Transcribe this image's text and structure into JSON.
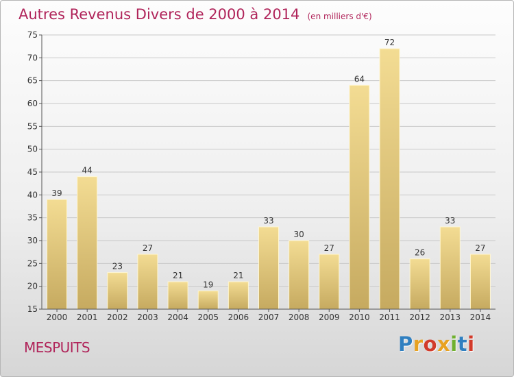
{
  "header": {
    "title": "Autres Revenus Divers de 2000 à 2014",
    "unit": "(en milliers d'€)"
  },
  "footer": {
    "place": "MESPUITS",
    "logo": "Proxiti",
    "logo_colors": [
      "#2f7fc0",
      "#e8a222",
      "#d23a2a",
      "#e8a222",
      "#6fb02f",
      "#2f7fc0",
      "#d23a2a"
    ]
  },
  "colors": {
    "title": "#b0245a",
    "bar_light": "#f3dc93",
    "bar_dark": "#c6aa60",
    "grid": "#c8c8c8",
    "axis": "#555555"
  },
  "chart_data": {
    "type": "bar",
    "categories": [
      "2000",
      "2001",
      "2002",
      "2003",
      "2004",
      "2005",
      "2006",
      "2007",
      "2008",
      "2009",
      "2010",
      "2011",
      "2012",
      "2013",
      "2014"
    ],
    "values": [
      39,
      44,
      23,
      27,
      21,
      19,
      21,
      33,
      30,
      27,
      64,
      72,
      26,
      33,
      27
    ],
    "ylim": [
      15,
      75
    ],
    "yticks": [
      15,
      20,
      25,
      30,
      35,
      40,
      45,
      50,
      55,
      60,
      65,
      70,
      75
    ],
    "grid": true,
    "data_labels": true
  }
}
